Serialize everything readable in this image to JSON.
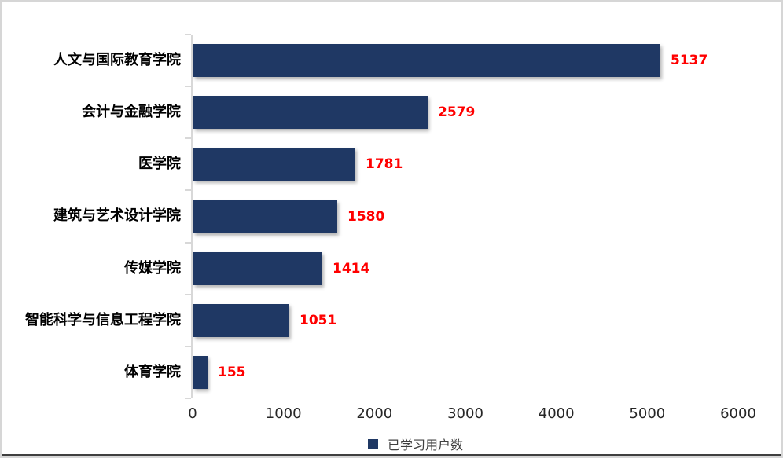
{
  "chart_data": {
    "type": "bar",
    "orientation": "horizontal",
    "title": "",
    "categories": [
      "人文与国际教育学院",
      "会计与金融学院",
      "医学院",
      "建筑与艺术设计学院",
      "传媒学院",
      "智能科学与信息工程学院",
      "体育学院"
    ],
    "values": [
      5137,
      2579,
      1781,
      1580,
      1414,
      1051,
      155
    ],
    "value_labels_shown": true,
    "xlim": [
      0,
      6000
    ],
    "x_ticks": [
      "0",
      "1000",
      "2000",
      "3000",
      "4000",
      "5000",
      "6000"
    ],
    "grid": false,
    "legend": [
      "已学习用户数"
    ],
    "legend_position": "bottom-center",
    "colors": {
      "bar": "#1f3864",
      "value_label": "#ff0000",
      "axis_line": "#d8d8d8",
      "tick_label": "#262626",
      "category_label": "#000000",
      "legend_text": "#404040",
      "frame_bottom_line": "#3f3f3f"
    }
  }
}
